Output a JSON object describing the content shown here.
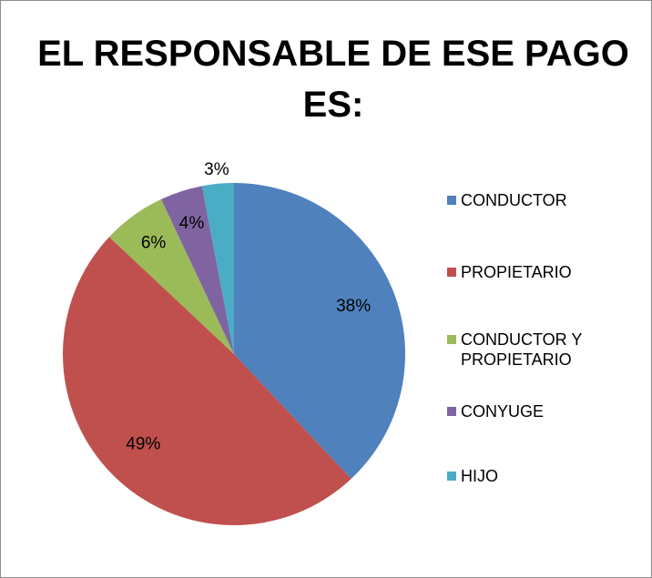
{
  "chart_data": {
    "type": "pie",
    "title": "EL RESPONSABLE DE ESE PAGO ES:",
    "categories": [
      "CONDUCTOR",
      "PROPIETARIO",
      "CONDUCTOR Y PROPIETARIO",
      "CONYUGE",
      "HIJO"
    ],
    "values": [
      38,
      49,
      6,
      4,
      3
    ],
    "value_labels": [
      "38%",
      "49%",
      "6%",
      "4%",
      "3%"
    ],
    "colors": [
      "#4f81bd",
      "#c0504d",
      "#9bbb59",
      "#8064a2",
      "#4bacc6"
    ],
    "legend": "right"
  }
}
